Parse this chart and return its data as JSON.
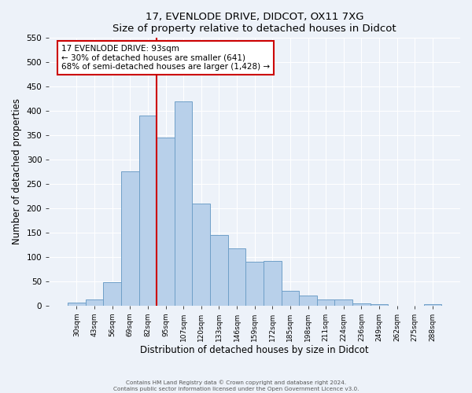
{
  "title": "17, EVENLODE DRIVE, DIDCOT, OX11 7XG",
  "subtitle": "Size of property relative to detached houses in Didcot",
  "xlabel": "Distribution of detached houses by size in Didcot",
  "ylabel": "Number of detached properties",
  "categories": [
    "30sqm",
    "43sqm",
    "56sqm",
    "69sqm",
    "82sqm",
    "95sqm",
    "107sqm",
    "120sqm",
    "133sqm",
    "146sqm",
    "159sqm",
    "172sqm",
    "185sqm",
    "198sqm",
    "211sqm",
    "224sqm",
    "236sqm",
    "249sqm",
    "262sqm",
    "275sqm",
    "288sqm"
  ],
  "values": [
    5,
    12,
    48,
    275,
    390,
    345,
    420,
    210,
    145,
    117,
    90,
    92,
    30,
    20,
    12,
    12,
    4,
    2,
    0,
    0,
    3
  ],
  "bar_color": "#b8d0ea",
  "bar_edge_color": "#6fa0c8",
  "vline_x": 4.5,
  "annotation_title": "17 EVENLODE DRIVE: 93sqm",
  "annotation_line1": "← 30% of detached houses are smaller (641)",
  "annotation_line2": "68% of semi-detached houses are larger (1,428) →",
  "annotation_box_color": "#ffffff",
  "annotation_box_edgecolor": "#cc0000",
  "vline_color": "#cc0000",
  "ylim": [
    0,
    550
  ],
  "yticks": [
    0,
    50,
    100,
    150,
    200,
    250,
    300,
    350,
    400,
    450,
    500,
    550
  ],
  "bg_color": "#edf2f9",
  "grid_color": "#ffffff",
  "footer1": "Contains HM Land Registry data © Crown copyright and database right 2024.",
  "footer2": "Contains public sector information licensed under the Open Government Licence v3.0."
}
